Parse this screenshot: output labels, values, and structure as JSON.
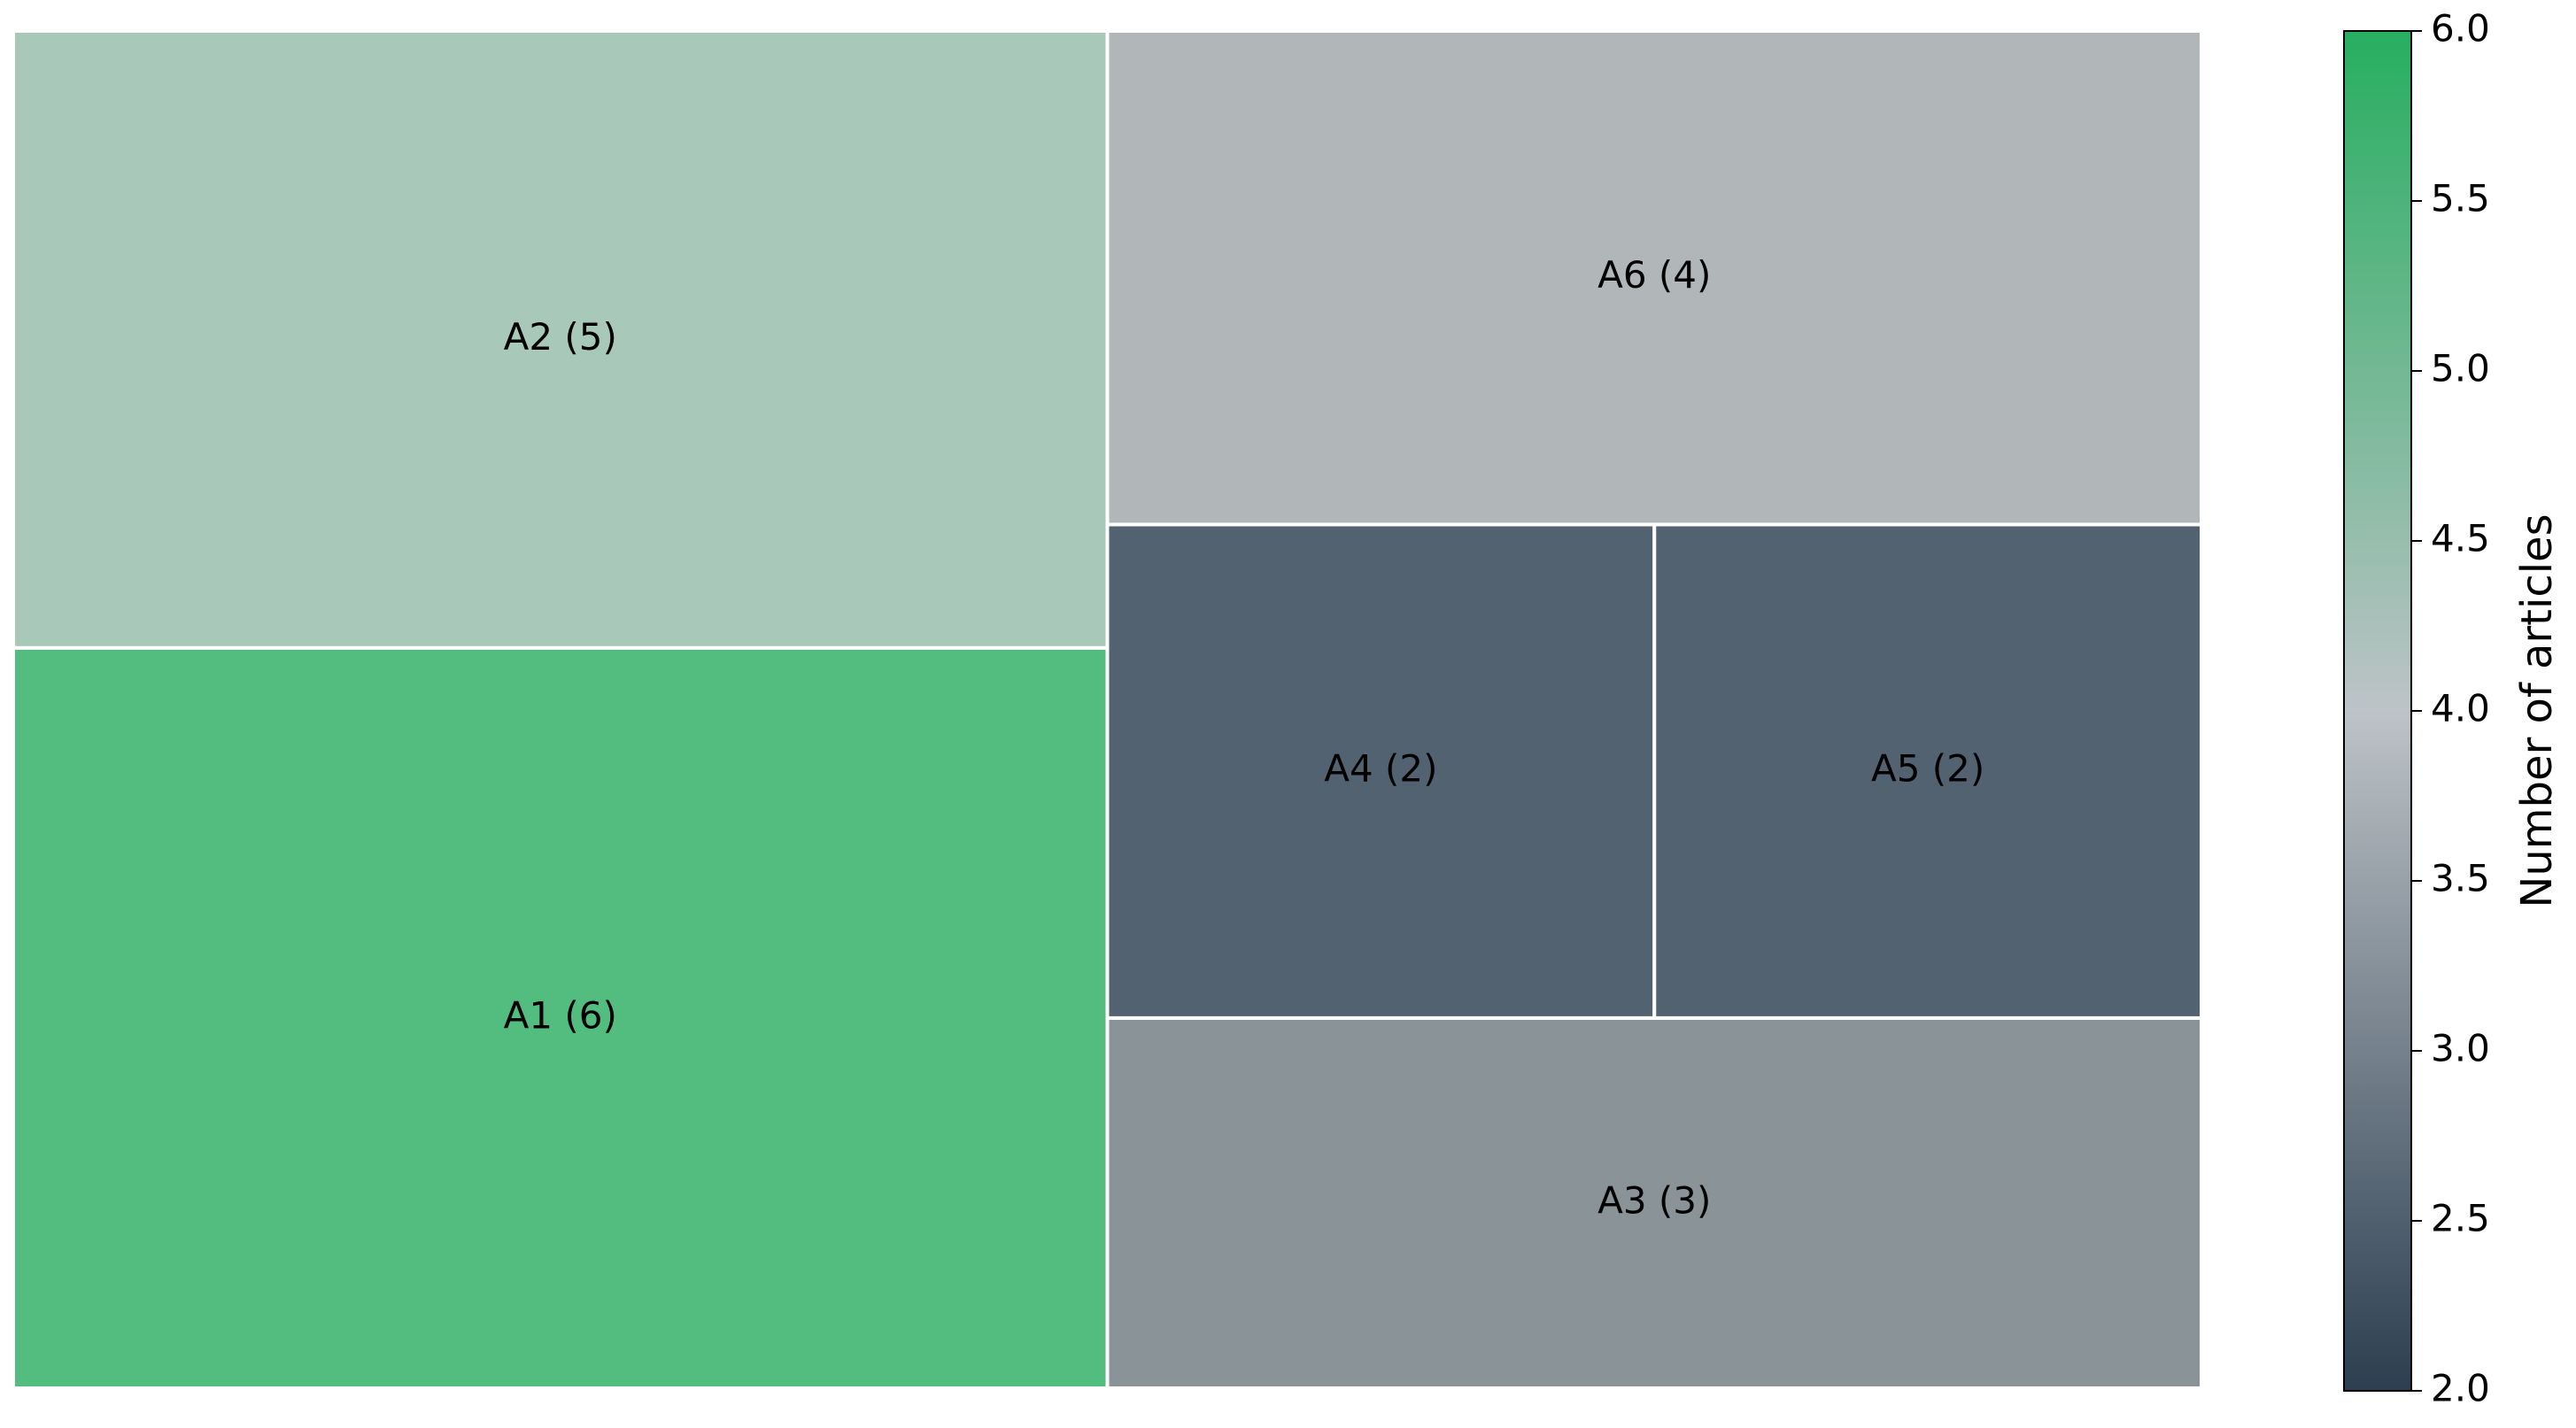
{
  "chart_data": {
    "type": "treemap",
    "categories": [
      "A1",
      "A2",
      "A3",
      "A4",
      "A5",
      "A6"
    ],
    "values": [
      6,
      5,
      3,
      2,
      2,
      4
    ],
    "value_labels": [
      "A1 (6)",
      "A2 (5)",
      "A3 (3)",
      "A4 (2)",
      "A5 (2)",
      "A6 (4)"
    ],
    "colors": [
      "#52bd7f",
      "#a8c9ba",
      "#8a9397",
      "#536271",
      "#536271",
      "#b1b7b8"
    ],
    "colorbar": {
      "label": "Number of articles",
      "lim": [
        2,
        6
      ],
      "ticks": [
        {
          "value": 2,
          "label": "2.0"
        },
        {
          "value": 2.5,
          "label": "2.5"
        },
        {
          "value": 3,
          "label": "3.0"
        },
        {
          "value": 3.5,
          "label": "3.5"
        },
        {
          "value": 4,
          "label": "4.0"
        },
        {
          "value": 4.5,
          "label": "4.5"
        },
        {
          "value": 5,
          "label": "5.0"
        },
        {
          "value": 5.5,
          "label": "5.5"
        },
        {
          "value": 6,
          "label": "6.0"
        }
      ],
      "colormap": [
        "#2c3e50",
        "#bdc3c7",
        "#27ae60"
      ]
    }
  }
}
